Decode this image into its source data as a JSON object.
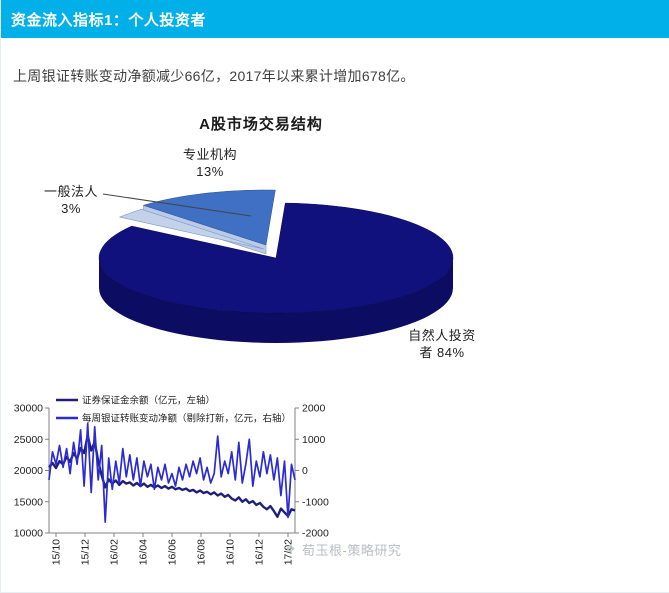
{
  "header": {
    "title": "资金流入指标1：个人投资者",
    "bg_color": "#01AFE9",
    "text_color": "#ffffff"
  },
  "intro": {
    "text": "上周银证转账变动净额减少66亿，2017年以来累计增加678亿。"
  },
  "watermark": {
    "icon": "❖",
    "text": "荀玉根-策略研究"
  },
  "chart_data": [
    {
      "type": "pie",
      "style": "3d-exploded",
      "title": "A股市场交易结构",
      "slices": [
        {
          "label": "自然人投资者",
          "pct": 84,
          "color": "#11117E"
        },
        {
          "label": "专业机构",
          "pct": 13,
          "color": "#4070C4"
        },
        {
          "label": "一般法人",
          "pct": 3,
          "color": "#C3D2EA"
        }
      ],
      "label_lines": {
        "inst1": "专业机构",
        "inst2": "13%",
        "corp1": "一般法人",
        "corp2": "3%",
        "indiv1": "自然人投资",
        "indiv2": "者 84%"
      },
      "wall_color": "#0C0C63",
      "cut_face_color": "#B9CBE6"
    },
    {
      "type": "line",
      "legend_position": "top-left",
      "x_labels": [
        "15/10",
        "15/12",
        "16/02",
        "16/04",
        "16/06",
        "16/08",
        "16/10",
        "16/12",
        "17/02"
      ],
      "left_axis": {
        "min": 10000,
        "max": 30000,
        "ticks": [
          30000,
          25000,
          20000,
          15000,
          10000
        ]
      },
      "right_axis": {
        "min": -2000,
        "max": 2000,
        "ticks": [
          2000,
          1000,
          0,
          -1000,
          -2000
        ]
      },
      "series": [
        {
          "name": "证券保证金余额（亿元，左轴）",
          "axis": "left",
          "color": "#1F1F7A",
          "width": 2.4,
          "values": [
            20500,
            21200,
            20400,
            21500,
            21000,
            22200,
            21400,
            22800,
            21900,
            23600,
            22800,
            25600,
            23200,
            24600,
            21500,
            19200,
            17300,
            18600,
            17900,
            18400,
            17700,
            18300,
            17900,
            18100,
            17600,
            18000,
            17500,
            17900,
            17400,
            17700,
            17300,
            17600,
            17200,
            17500,
            17100,
            17400,
            17000,
            17200,
            16900,
            17100,
            16700,
            16900,
            16500,
            16800,
            16400,
            16600,
            16200,
            16500,
            16000,
            16300,
            15800,
            16100,
            15500,
            15200,
            15700,
            15000,
            15400,
            14800,
            15100,
            14500,
            14800,
            14200,
            13800,
            14300,
            13500,
            12600,
            13900,
            13300,
            12700,
            13800,
            13600
          ]
        },
        {
          "name": "每周银证转账变动净额（剔除打新，亿元，右轴）",
          "axis": "right",
          "color": "#2B2BD5",
          "width": 1.7,
          "values": [
            -300,
            600,
            200,
            800,
            100,
            700,
            -100,
            900,
            200,
            1300,
            -500,
            1500,
            -700,
            1400,
            -300,
            800,
            -1650,
            400,
            -600,
            300,
            -400,
            700,
            -200,
            500,
            -300,
            400,
            -500,
            300,
            -200,
            200,
            -600,
            100,
            -300,
            200,
            -400,
            -100,
            -500,
            100,
            -300,
            200,
            -200,
            300,
            -100,
            400,
            -300,
            100,
            -400,
            -100,
            1100,
            -200,
            300,
            -100,
            600,
            -300,
            900,
            -400,
            200,
            1000,
            -500,
            300,
            -200,
            600,
            -100,
            500,
            -300,
            400,
            -800,
            300,
            -1500,
            200,
            -300
          ]
        }
      ]
    }
  ]
}
